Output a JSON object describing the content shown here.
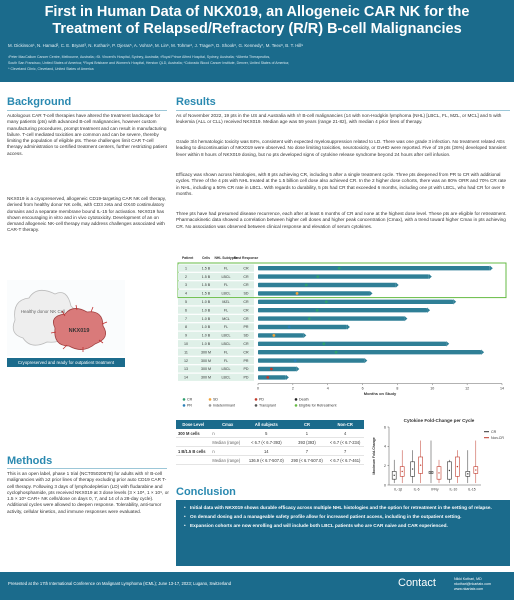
{
  "header": {
    "title_line1": "First in Human Data of NKX019, an Allogeneic CAR NK for the",
    "title_line2": "Treatment of Relapsed/Refractory (R/R) B-cell Malignancies",
    "authors": "M. Dickinson¹, N. Hamad², C. E. Bryant³, N. Kothari⁴, P. Ojeras⁵, A. Vohra⁶, M. Lin⁶, M. Tohme⁶, J. Trager⁶, D. Shook⁶, G. Kennedy⁷, M. Teex⁸, B. T. Hill⁹",
    "affil1": "¹Peter MacCallum Cancer Centre, Melbourne, Australia; ²St. Vincent's Hospital, Sydney, Australia; ³Royal Prince Alfred Hospital, Sydney, Australia; ⁴Alberta Therapeutics,",
    "affil2": "South San Francisco, United States of America; ⁵Royal Brisbane and Women's Hospital, Herston QLD, Australia; ⁶Colorado Blood Cancer Institute, Denver, United States of America;",
    "affil3": "⁹ Cleveland Clinic, Cleveland, United States of America"
  },
  "background": {
    "heading": "Background",
    "p1": "Autologous CAR T-cell therapies have altered the treatment landscape for many patients (pts) with advanced B-cell malignancies, however custom manufacturing procedures, prompt treatment and can result in manufacturing failure. T-cell mediated toxicities are common and can be severe, thereby limiting the population of eligible pts. These challenges limit CAR T-cell therapy administration to certified treatment centers, further restricting patient access.",
    "p2": "NKX019 is a cryopreserved, allogeneic CD19-targeting CAR NK cell therapy, derived from healthy donor NK cells, with CD3 zeta and OX40 costimulatory domains and a separate membrane bound IL-15 for activation. NKX019 has shown encouraging in vitro and in vivo cytotoxicity. Development of an on demand allogeneic NK-cell therapy may address challenges associated with CAR-T therapy."
  },
  "figure": {
    "donor_label": "Healthy donor NK Cell",
    "product_label": "NKX019",
    "caption": "Cryopreserved and ready for outpatient treatment"
  },
  "methods": {
    "heading": "Methods",
    "p1": "This is an open label, phase 1 trial (NCT05020678) for adults with r/r B-cell malignancies with ≥2 prior lines of therapy excluding prior auto CD19 CAR T-cell therapy. Following 3 days of lymphodepletion (LD) with fludarabine and cyclophosphamide, pts received NKX019 at 3 dose levels (3 × 10⁸, 1 × 10⁹, or 1.5 × 10⁹ CAR+ NK cells/dose on days 0, 7, and 14 of a 28-day cycle). Additional cycles were allowed to deepen response. Tolerability, anti-tumor activity, cellular kinetics, and immune responses were evaluated."
  },
  "results": {
    "heading": "Results",
    "p1": "As of November 2022, 19 pts in the US and Australia with r/r B-cell malignancies (14 with non-Hodgkin lymphoma (NHL) [LBCL, FL, MZL, or MCL] and 5 with leukemia (ALL or CLL) received NKX019. Median age was 59 years (range 21-82), with median 4 prior lines of therapy.",
    "p2": "Grade 3/4 hematologic toxicity was 84%, consistent with expected myelosuppression related to LD. There was one grade 3 infection. No treatment related AEs leading to discontinuation of NKX019 were observed. No dose limiting toxicities, neurotoxicity, or GvHD were reported. Five of 19 pts (26%) developed transient fever within 8 hours of NKX019 dosing, but no pts developed signs of cytokine release syndrome beyond 24 hours after cell infusion.",
    "p3": "Efficacy was shown across histologies, with 8 pts achieving CR, including 5 after a single treatment cycle. Three pts deepened from PR to CR with additional cycles. Three of the 4 pts with NHL treated at the 1.5 billion cell dose also achieved CR. In the 2 higher dose cohorts, there was an 80% ORR and 70% CR rate in NHL, including a 50% CR rate in LBCL. With regards to durability, 5 pts had CR that exceeded 6 months, including one pt with LBCL, who had CR for over 9 months.",
    "p4": "Three pts have had presumed disease recurrence, each after at least 6 months of CR and none at the highest dose level. These pts are eligible for retreatment. Pharmacokinetic data showed a correlation between higher cell doses and higher peak concentration (Cmax), with a trend toward higher Cmax in pts achieving CR. No association was observed between clinical response and elevation of serum cytokines."
  },
  "swimmer": {
    "col_headers": [
      "Patient",
      "Cells",
      "NHL Subtypes",
      "Best Response"
    ],
    "rows": [
      {
        "patient": "1",
        "cells": "1.5 B",
        "subtype": "FL",
        "resp": "CR",
        "months": 13.3,
        "boxed": true
      },
      {
        "patient": "2",
        "cells": "1.5 B",
        "subtype": "LBCL",
        "resp": "CR",
        "months": 9.8,
        "boxed": true
      },
      {
        "patient": "3",
        "cells": "1.5 B",
        "subtype": "FL",
        "resp": "CR",
        "months": 7.9,
        "boxed": true
      },
      {
        "patient": "4",
        "cells": "1.5 B",
        "subtype": "LBCL",
        "resp": "SD",
        "months": 6.4,
        "boxed": true
      },
      {
        "patient": "5",
        "cells": "1.0 B",
        "subtype": "MZL",
        "resp": "CR",
        "months": 11.2,
        "boxed": false
      },
      {
        "patient": "6",
        "cells": "1.0 B",
        "subtype": "FL",
        "resp": "CR",
        "months": 9.7,
        "boxed": false
      },
      {
        "patient": "7",
        "cells": "1.0 B",
        "subtype": "MCL",
        "resp": "CR",
        "months": 8.4,
        "boxed": false
      },
      {
        "patient": "8",
        "cells": "1.0 B",
        "subtype": "FL",
        "resp": "PR",
        "months": 5.1,
        "boxed": false
      },
      {
        "patient": "9",
        "cells": "1.0 B",
        "subtype": "LBCL",
        "resp": "SD",
        "months": 2.6,
        "boxed": false
      },
      {
        "patient": "10",
        "cells": "1.0 B",
        "subtype": "LBCL",
        "resp": "CR",
        "months": 10.8,
        "boxed": false
      },
      {
        "patient": "11",
        "cells": "300 M",
        "subtype": "FL",
        "resp": "CR",
        "months": 12.8,
        "boxed": false
      },
      {
        "patient": "12",
        "cells": "300 M",
        "subtype": "FL",
        "resp": "PR",
        "months": 6.1,
        "boxed": false
      },
      {
        "patient": "13",
        "cells": "300 M",
        "subtype": "LBCL",
        "resp": "PD",
        "months": 2.2,
        "boxed": false
      },
      {
        "patient": "14",
        "cells": "300 M",
        "subtype": "LBCL",
        "resp": "PD",
        "months": 1.6,
        "boxed": false
      }
    ],
    "x_ticks": [
      "0",
      "2",
      "4",
      "6",
      "8",
      "10",
      "12",
      "14"
    ],
    "x_label": "Months on Study",
    "legend": [
      "CR",
      "PR",
      "SD",
      "Indeterminant",
      "PD",
      "Transplant",
      "Death",
      "Eligible for Retreatment"
    ],
    "colors": {
      "CR": "#2e9e6e",
      "PR": "#2a7fb8",
      "SD": "#f2a33a",
      "PD": "#c0392b",
      "Indeterminant": "#999999",
      "bar": "#2f7f96",
      "box": "#66bb44"
    }
  },
  "dose_table": {
    "headers": [
      "Dose Level",
      "Cmax",
      "All subjects",
      "CR",
      "Non-CR"
    ],
    "rows": [
      {
        "dose": "300 M cells",
        "label": "n",
        "all": "5",
        "cr": "1",
        "noncr": "4"
      },
      {
        "dose": "",
        "label": "Median (range)",
        "all": "< 6.7 (< 6.7-393)",
        "cr": "393 (393)",
        "noncr": "< 6.7 (< 6.7-234)"
      },
      {
        "dose": "1 B/1.5 B cells",
        "label": "n",
        "all": "14",
        "cr": "7",
        "noncr": "7"
      },
      {
        "dose": "",
        "label": "Median (range)",
        "all": "136.9 (< 6.7-507.0)",
        "cr": "290 (< 6.7-507.0)",
        "noncr": "< 6.7 (< 6.7-461)"
      }
    ]
  },
  "cytokine": {
    "title": "Cytokine Fold-Change per Cycle",
    "y_label": "Maximum Fold-Change",
    "y_ticks": [
      "0",
      "2",
      "4",
      "6"
    ],
    "x_ticks": [
      "IL-1β",
      "IL-6",
      "IFNγ",
      "IL-10",
      "IL-15"
    ],
    "legend": [
      "CR",
      "Non-CR"
    ],
    "colors": {
      "CR": "#333333",
      "Non-CR": "#c0392b"
    }
  },
  "conclusion": {
    "heading": "Conclusion",
    "bullets": [
      "Initial data with NKX019 shows durable efficacy across multiple NHL histologies and the option for retreatment in the setting of relapse.",
      "On demand dosing and a manageable safety profile allow for increased patient access, including in the outpatient setting.",
      "Expansion cohorts are now enrolling and will include both LBCL patients who are CAR naive and CAR experienced."
    ]
  },
  "footer": {
    "presented": "Presented at the 17th International Conference on Malignant Lymphoma (ICML); June 13-17, 2023; Lugano, Switzerland",
    "contact_heading": "Contact",
    "contact_name": "Nikki Kothari, MD",
    "contact_email": "nkothari@nkartatx.com",
    "contact_web": "www.nkartatx.com"
  }
}
